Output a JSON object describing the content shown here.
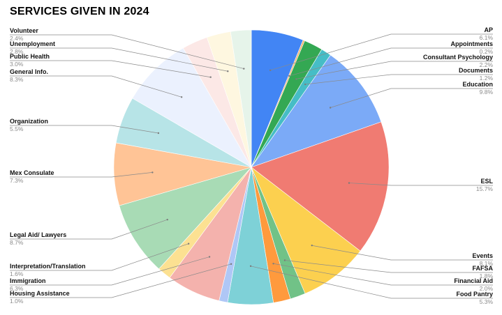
{
  "chart_data": {
    "type": "pie",
    "title": "SERVICES GIVEN IN 2024",
    "slices": [
      {
        "label": "AP",
        "pct_label": "6.1%",
        "value": 6.1,
        "color": "#4285f4"
      },
      {
        "label": "Appointments",
        "pct_label": "0.2%",
        "value": 0.2,
        "color": "#f6b26b"
      },
      {
        "label": "Consultant Psychology",
        "pct_label": "2.2%",
        "value": 2.2,
        "color": "#34a853"
      },
      {
        "label": "Documents",
        "pct_label": "1.2%",
        "value": 1.2,
        "color": "#46bdc6"
      },
      {
        "label": "Education",
        "pct_label": "9.8%",
        "value": 9.8,
        "color": "#7baaf7"
      },
      {
        "label": "ESL",
        "pct_label": "15.7%",
        "value": 15.7,
        "color": "#f07b72"
      },
      {
        "label": "Events",
        "pct_label": "8.1%",
        "value": 8.1,
        "color": "#fcd04f"
      },
      {
        "label": "FAFSA",
        "pct_label": "1.8%",
        "value": 1.8,
        "color": "#71c287"
      },
      {
        "label": "Financial Aid",
        "pct_label": "2.0%",
        "value": 2.0,
        "color": "#ff9a3d"
      },
      {
        "label": "Food Pantry",
        "pct_label": "5.3%",
        "value": 5.3,
        "color": "#7ed1d7"
      },
      {
        "label": "Housing Assistance",
        "pct_label": "1.0%",
        "value": 1.0,
        "color": "#afc7f6"
      },
      {
        "label": "Immigration",
        "pct_label": "6.3%",
        "value": 6.3,
        "color": "#f4b2ad"
      },
      {
        "label": "Interpretation/Translation",
        "pct_label": "1.6%",
        "value": 1.6,
        "color": "#fce192"
      },
      {
        "label": "Legal Aid/ Lawyers",
        "pct_label": "8.7%",
        "value": 8.7,
        "color": "#a8dbb5"
      },
      {
        "label": "Mex Consulate",
        "pct_label": "7.3%",
        "value": 7.3,
        "color": "#ffc496"
      },
      {
        "label": "Organization",
        "pct_label": "5.5%",
        "value": 5.5,
        "color": "#b7e4e7"
      },
      {
        "label": "General Info.",
        "pct_label": "8.3%",
        "value": 8.3,
        "color": "#ebf1fe"
      },
      {
        "label": "Public Health",
        "pct_label": "3.0%",
        "value": 3.0,
        "color": "#fce8e6"
      },
      {
        "label": "Unemployment",
        "pct_label": "2.8%",
        "value": 2.8,
        "color": "#fef7e0"
      },
      {
        "label": "Volunteer",
        "pct_label": "2.4%",
        "value": 2.4,
        "color": "#e6f4ea"
      }
    ],
    "legend": "none"
  }
}
